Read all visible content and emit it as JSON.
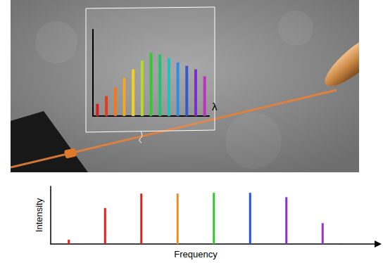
{
  "chart_data": [
    {
      "type": "bar",
      "x_label": "λ",
      "categories": [
        null,
        null,
        null,
        null,
        null,
        null,
        null,
        null,
        null,
        null,
        null,
        null,
        null
      ],
      "values": [
        14,
        23,
        33,
        44,
        54,
        64,
        73,
        71,
        67,
        62,
        58,
        54,
        46
      ],
      "colors": [
        "#d62020",
        "#e63b1a",
        "#f07a1a",
        "#f5a623",
        "#f2d21b",
        "#b5d92a",
        "#39c43b",
        "#1fc46e",
        "#20c0c0",
        "#2a8fe0",
        "#3a55d0",
        "#7a30c8",
        "#c030c0"
      ],
      "ylim": [
        0,
        100
      ],
      "tick_labels": false,
      "grid": false
    },
    {
      "type": "bar",
      "x_label": "Frequency",
      "y_label": "Intensity",
      "categories": [
        null,
        null,
        null,
        null,
        null,
        null,
        null,
        null
      ],
      "values": [
        6,
        50,
        70,
        70,
        71,
        71,
        65,
        29
      ],
      "colors": [
        "#e0201f",
        "#e0201f",
        "#e0201f",
        "#f08c1e",
        "#2ec82e",
        "#2255dd",
        "#8a2be2",
        "#9b30d0"
      ],
      "ylim": [
        0,
        80
      ],
      "tick_labels": false,
      "grid": false
    }
  ]
}
